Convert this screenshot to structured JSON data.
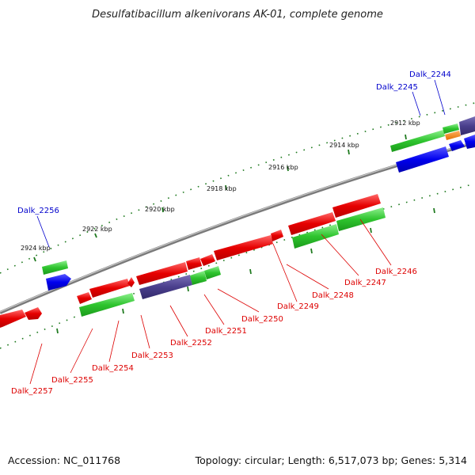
{
  "title": "Desulfatibacillum alkenivorans AK-01, complete genome",
  "footer": {
    "accession": "Accession: NC_011768",
    "summary": "Topology: circular; Length: 6,517,073 bp; Genes: 5,314"
  },
  "colors": {
    "forward_cds": "#e60000",
    "reverse_cds": "#0000ee",
    "gene_track": "#22c022",
    "hypothetical": "#4a3f8c",
    "rna": "#ff8c00",
    "backbone": "#888888",
    "tick": "#1f7a1f",
    "label_red": "#dd0000",
    "label_blue": "#0000cc"
  },
  "ticks": [
    "2912 kbp",
    "2914 kbp",
    "2916 kbp",
    "2918 kbp",
    "2920 kbp",
    "2922 kbp",
    "2924 kbp"
  ],
  "labels": [
    {
      "text": "Dalk_2244",
      "color": "label_blue"
    },
    {
      "text": "Dalk_2245",
      "color": "label_blue"
    },
    {
      "text": "Dalk_2256",
      "color": "label_blue"
    },
    {
      "text": "Dalk_2246",
      "color": "label_red"
    },
    {
      "text": "Dalk_2247",
      "color": "label_red"
    },
    {
      "text": "Dalk_2248",
      "color": "label_red"
    },
    {
      "text": "Dalk_2249",
      "color": "label_red"
    },
    {
      "text": "Dalk_2250",
      "color": "label_red"
    },
    {
      "text": "Dalk_2251",
      "color": "label_red"
    },
    {
      "text": "Dalk_2252",
      "color": "label_red"
    },
    {
      "text": "Dalk_2253",
      "color": "label_red"
    },
    {
      "text": "Dalk_2254",
      "color": "label_red"
    },
    {
      "text": "Dalk_2255",
      "color": "label_red"
    },
    {
      "text": "Dalk_2257",
      "color": "label_red"
    }
  ]
}
